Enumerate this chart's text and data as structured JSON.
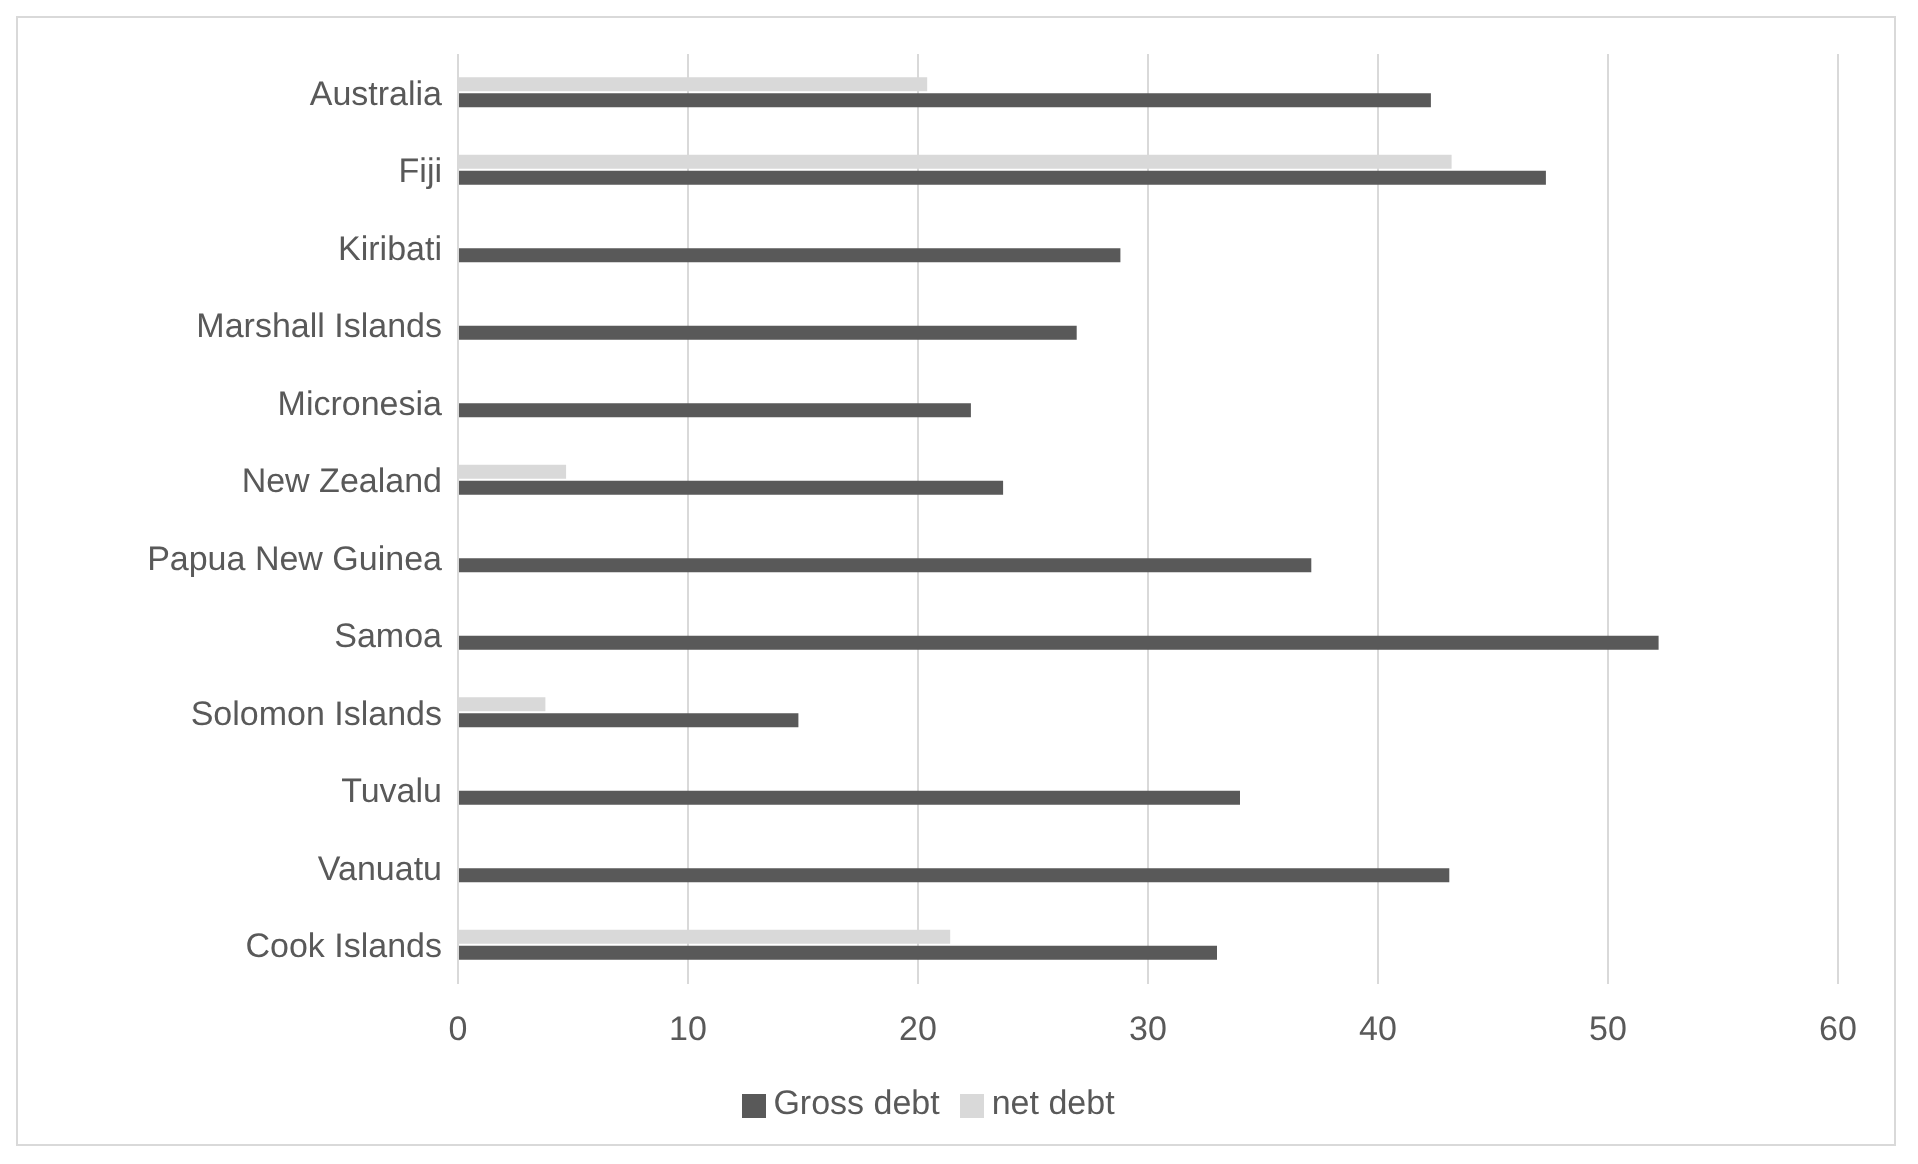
{
  "chart_data": {
    "type": "bar",
    "orientation": "horizontal",
    "categories": [
      "Australia",
      "Fiji",
      "Kiribati",
      "Marshall Islands",
      "Micronesia",
      "New Zealand",
      "Papua New Guinea",
      "Samoa",
      "Solomon Islands",
      "Tuvalu",
      "Vanuatu",
      "Cook Islands"
    ],
    "series": [
      {
        "name": "net debt",
        "color": "#d9d9d9",
        "values": [
          20.4,
          43.2,
          null,
          null,
          null,
          4.7,
          null,
          null,
          3.8,
          null,
          null,
          21.4
        ]
      },
      {
        "name": "Gross debt",
        "color": "#595959",
        "values": [
          42.3,
          47.3,
          28.8,
          26.9,
          22.3,
          23.7,
          37.1,
          52.2,
          14.8,
          34.0,
          43.1,
          33.0
        ]
      }
    ],
    "xlim": [
      0,
      60
    ],
    "xticks": [
      0,
      10,
      20,
      30,
      40,
      50,
      60
    ],
    "grid": "x",
    "legend": "bottom"
  }
}
